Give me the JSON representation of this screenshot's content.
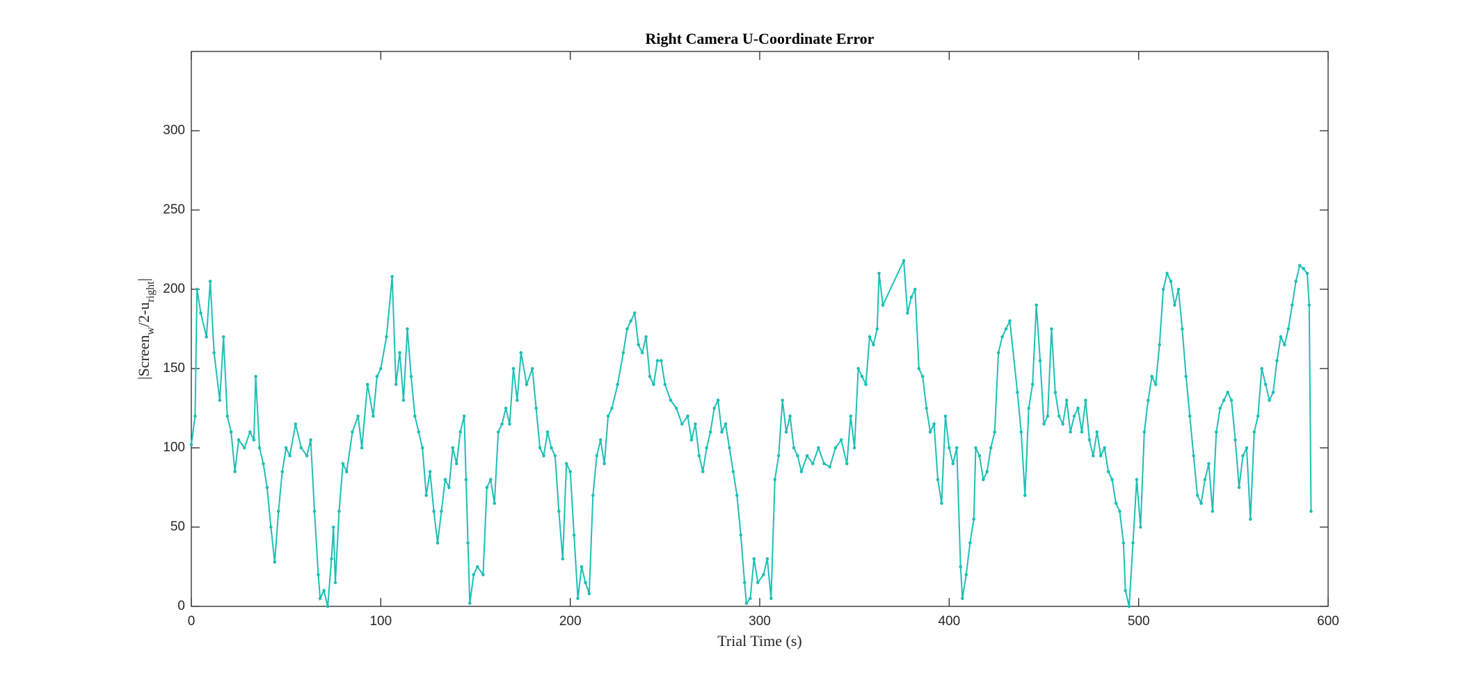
{
  "chart_data": {
    "type": "line",
    "title": "Right Camera U-Coordinate Error",
    "xlabel": "Trial Time (s)",
    "ylabel": [
      {
        "text": "|Screen"
      },
      {
        "text": "w",
        "sub": true
      },
      {
        "text": "/2-u"
      },
      {
        "text": "right",
        "sub": true
      },
      {
        "text": "|"
      }
    ],
    "xlim": [
      0,
      600
    ],
    "xticks": [
      0,
      100,
      200,
      300,
      400,
      500,
      600
    ],
    "ylim": [
      0,
      350
    ],
    "yticks": [
      0,
      50,
      100,
      150,
      200,
      250,
      300
    ],
    "grid": false,
    "series": [
      {
        "color": "#1cbfb5",
        "x": [
          0,
          2,
          3,
          5,
          8,
          10,
          12,
          15,
          17,
          19,
          21,
          23,
          25,
          28,
          31,
          33,
          34,
          36,
          38,
          40,
          42,
          44,
          46,
          48,
          50,
          52,
          55,
          58,
          61,
          63,
          65,
          67,
          68,
          70,
          72,
          74,
          75,
          76,
          78,
          80,
          82,
          85,
          88,
          90,
          93,
          96,
          98,
          100,
          103,
          106,
          108,
          110,
          112,
          114,
          116,
          118,
          120,
          122,
          124,
          126,
          128,
          130,
          132,
          134,
          136,
          138,
          140,
          142,
          144,
          145,
          146,
          147,
          149,
          151,
          154,
          156,
          158,
          160,
          162,
          164,
          166,
          168,
          170,
          172,
          174,
          177,
          180,
          182,
          184,
          186,
          188,
          190,
          192,
          194,
          196,
          198,
          200,
          202,
          204,
          206,
          208,
          210,
          212,
          214,
          216,
          218,
          220,
          222,
          225,
          228,
          230,
          232,
          234,
          236,
          238,
          240,
          242,
          244,
          246,
          248,
          250,
          253,
          256,
          259,
          262,
          264,
          266,
          268,
          270,
          272,
          274,
          276,
          278,
          280,
          282,
          284,
          286,
          288,
          290,
          292,
          293,
          295,
          297,
          299,
          302,
          304,
          306,
          308,
          310,
          312,
          314,
          316,
          318,
          320,
          322,
          325,
          328,
          331,
          334,
          337,
          340,
          343,
          346,
          348,
          350,
          352,
          354,
          356,
          358,
          360,
          362,
          363,
          365,
          376,
          378,
          380,
          382,
          384,
          386,
          388,
          390,
          392,
          394,
          396,
          398,
          400,
          402,
          404,
          406,
          407,
          409,
          411,
          413,
          414,
          416,
          418,
          420,
          422,
          424,
          426,
          428,
          430,
          432,
          436,
          438,
          440,
          442,
          444,
          446,
          448,
          450,
          452,
          454,
          456,
          458,
          460,
          462,
          464,
          466,
          468,
          470,
          472,
          474,
          476,
          478,
          480,
          482,
          484,
          486,
          488,
          490,
          492,
          493,
          495,
          497,
          499,
          501,
          503,
          505,
          507,
          509,
          511,
          513,
          515,
          517,
          519,
          521,
          523,
          525,
          527,
          529,
          531,
          533,
          535,
          537,
          539,
          541,
          543,
          545,
          547,
          549,
          551,
          553,
          555,
          557,
          559,
          561,
          563,
          565,
          567,
          569,
          571,
          573,
          575,
          577,
          579,
          581,
          583,
          585,
          587,
          589,
          590,
          591
        ],
        "values": [
          102,
          120,
          200,
          185,
          170,
          205,
          160,
          130,
          170,
          120,
          110,
          85,
          105,
          100,
          110,
          105,
          145,
          100,
          90,
          75,
          50,
          28,
          60,
          85,
          100,
          95,
          115,
          100,
          95,
          105,
          60,
          20,
          5,
          10,
          0,
          30,
          50,
          15,
          60,
          90,
          85,
          110,
          120,
          100,
          140,
          120,
          145,
          150,
          170,
          208,
          140,
          160,
          130,
          175,
          145,
          120,
          110,
          100,
          70,
          85,
          60,
          40,
          60,
          80,
          75,
          100,
          90,
          110,
          120,
          80,
          40,
          2,
          20,
          25,
          20,
          75,
          80,
          65,
          110,
          115,
          125,
          115,
          150,
          130,
          160,
          140,
          150,
          125,
          100,
          95,
          110,
          100,
          95,
          60,
          30,
          90,
          85,
          45,
          5,
          25,
          15,
          8,
          70,
          95,
          105,
          90,
          120,
          125,
          140,
          160,
          175,
          180,
          185,
          165,
          160,
          170,
          145,
          140,
          155,
          155,
          140,
          130,
          125,
          115,
          120,
          105,
          115,
          95,
          85,
          100,
          110,
          125,
          130,
          110,
          115,
          100,
          85,
          70,
          45,
          15,
          2,
          5,
          30,
          15,
          20,
          30,
          5,
          80,
          95,
          130,
          110,
          120,
          100,
          95,
          85,
          95,
          90,
          100,
          90,
          88,
          100,
          105,
          90,
          120,
          100,
          150,
          145,
          140,
          170,
          165,
          175,
          210,
          190,
          218,
          185,
          195,
          200,
          150,
          145,
          125,
          110,
          115,
          80,
          65,
          120,
          100,
          90,
          100,
          25,
          5,
          20,
          40,
          55,
          100,
          95,
          80,
          85,
          100,
          110,
          160,
          170,
          175,
          180,
          135,
          110,
          70,
          125,
          140,
          190,
          155,
          115,
          120,
          175,
          135,
          120,
          115,
          130,
          110,
          120,
          125,
          110,
          130,
          105,
          95,
          110,
          95,
          100,
          85,
          80,
          65,
          60,
          40,
          10,
          0,
          40,
          80,
          50,
          110,
          130,
          145,
          140,
          165,
          200,
          210,
          205,
          190,
          200,
          175,
          145,
          120,
          95,
          70,
          65,
          80,
          90,
          60,
          110,
          125,
          130,
          135,
          130,
          105,
          75,
          95,
          100,
          55,
          110,
          120,
          150,
          140,
          130,
          135,
          155,
          170,
          165,
          175,
          190,
          205,
          215,
          213,
          210,
          190,
          60
        ]
      }
    ]
  }
}
